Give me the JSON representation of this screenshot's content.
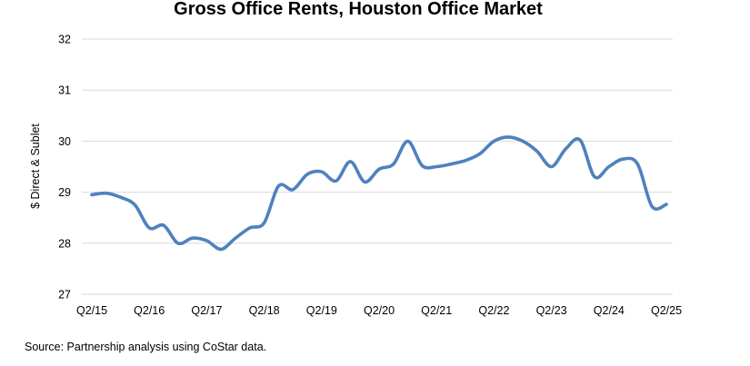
{
  "chart_data": {
    "type": "line",
    "title": "Gross Office Rents, Houston Office Market",
    "ylabel": "$ Direct & Sublet",
    "xlabel": "",
    "ylim": [
      27,
      32
    ],
    "yticks": [
      27,
      28,
      29,
      30,
      31,
      32
    ],
    "grid": true,
    "legend": "none",
    "x_tick_labels": [
      "Q2/15",
      "Q2/16",
      "Q2/17",
      "Q2/18",
      "Q2/19",
      "Q2/20",
      "Q2/21",
      "Q2/22",
      "Q2/23",
      "Q2/24",
      "Q2/25"
    ],
    "x": [
      "Q2/15",
      "Q3/15",
      "Q4/15",
      "Q1/16",
      "Q2/16",
      "Q3/16",
      "Q4/16",
      "Q1/17",
      "Q2/17",
      "Q3/17",
      "Q4/17",
      "Q1/18",
      "Q2/18",
      "Q3/18",
      "Q4/18",
      "Q1/19",
      "Q2/19",
      "Q3/19",
      "Q4/19",
      "Q1/20",
      "Q2/20",
      "Q3/20",
      "Q4/20",
      "Q1/21",
      "Q2/21",
      "Q3/21",
      "Q4/21",
      "Q1/22",
      "Q2/22",
      "Q3/22",
      "Q4/22",
      "Q1/23",
      "Q2/23",
      "Q3/23",
      "Q4/23",
      "Q1/24",
      "Q2/24",
      "Q3/24",
      "Q4/24",
      "Q1/25",
      "Q2/25"
    ],
    "series": [
      {
        "values": [
          28.95,
          28.98,
          28.9,
          28.75,
          28.3,
          28.35,
          28.0,
          28.1,
          28.05,
          27.88,
          28.1,
          28.3,
          28.4,
          29.12,
          29.05,
          29.35,
          29.4,
          29.22,
          29.6,
          29.2,
          29.45,
          29.55,
          30.0,
          29.52,
          29.5,
          29.55,
          29.62,
          29.75,
          30.0,
          30.08,
          30.0,
          29.8,
          29.5,
          29.85,
          30.02,
          29.3,
          29.5,
          29.65,
          29.55,
          28.72,
          28.76
        ]
      }
    ],
    "line_color": "#4f81bd"
  },
  "source_note": "Source: Partnership analysis using CoStar data."
}
